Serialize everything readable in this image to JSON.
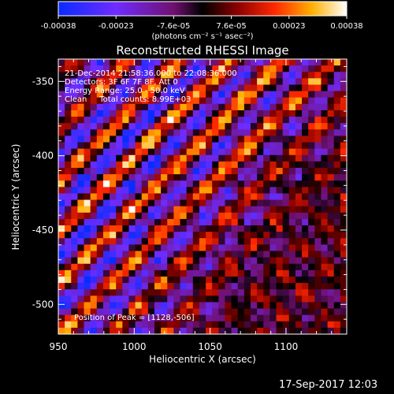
{
  "colorbar": {
    "ticks": [
      "-0.00038",
      "-0.00023",
      "-7.6e-05",
      "7.6e-05",
      "0.00023",
      "0.00038"
    ],
    "unit_label": "(photons cm⁻² s⁻¹ asec⁻²)"
  },
  "footer": {
    "timestamp": "17-Sep-2017 12:03"
  },
  "chart_data": {
    "type": "heatmap",
    "title": "Reconstructed RHESSI Image",
    "xlabel": "Heliocentric X (arcsec)",
    "ylabel": "Heliocentric Y (arcsec)",
    "xlim": [
      950,
      1140
    ],
    "ylim": [
      -520,
      -335
    ],
    "xticks": [
      950,
      1000,
      1050,
      1100
    ],
    "yticks": [
      -350,
      -400,
      -450,
      -500
    ],
    "annotations": [
      "21-Dec-2014 21:58:36.000 to 22:08:36.000",
      "Detectors: 3F 6F 7F 8F, Att 0",
      "Energy Range: 25.0 - 50.0 keV",
      "Clean     Total counts: 8.99E+03"
    ],
    "peak_label": "Position of Peak = [1128,-506]",
    "peak": {
      "x": 1128,
      "y": -506
    },
    "grid": false
  }
}
